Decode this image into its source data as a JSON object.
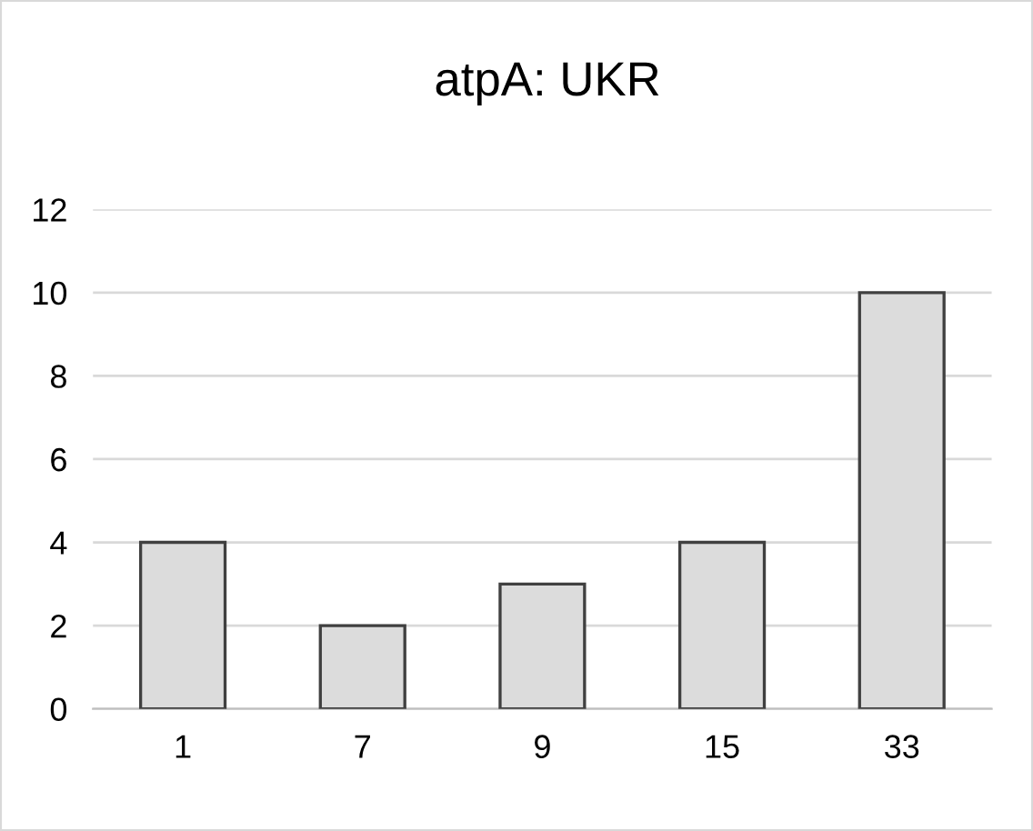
{
  "chart_data": {
    "type": "bar",
    "title": "atpA: UKR",
    "categories": [
      "1",
      "7",
      "9",
      "15",
      "33"
    ],
    "values": [
      4,
      2,
      3,
      4,
      10
    ],
    "color": "#dcdcdc",
    "ylim": [
      0,
      12
    ],
    "yticks": [
      0,
      2,
      4,
      6,
      8,
      10,
      12
    ],
    "grid": "y"
  }
}
